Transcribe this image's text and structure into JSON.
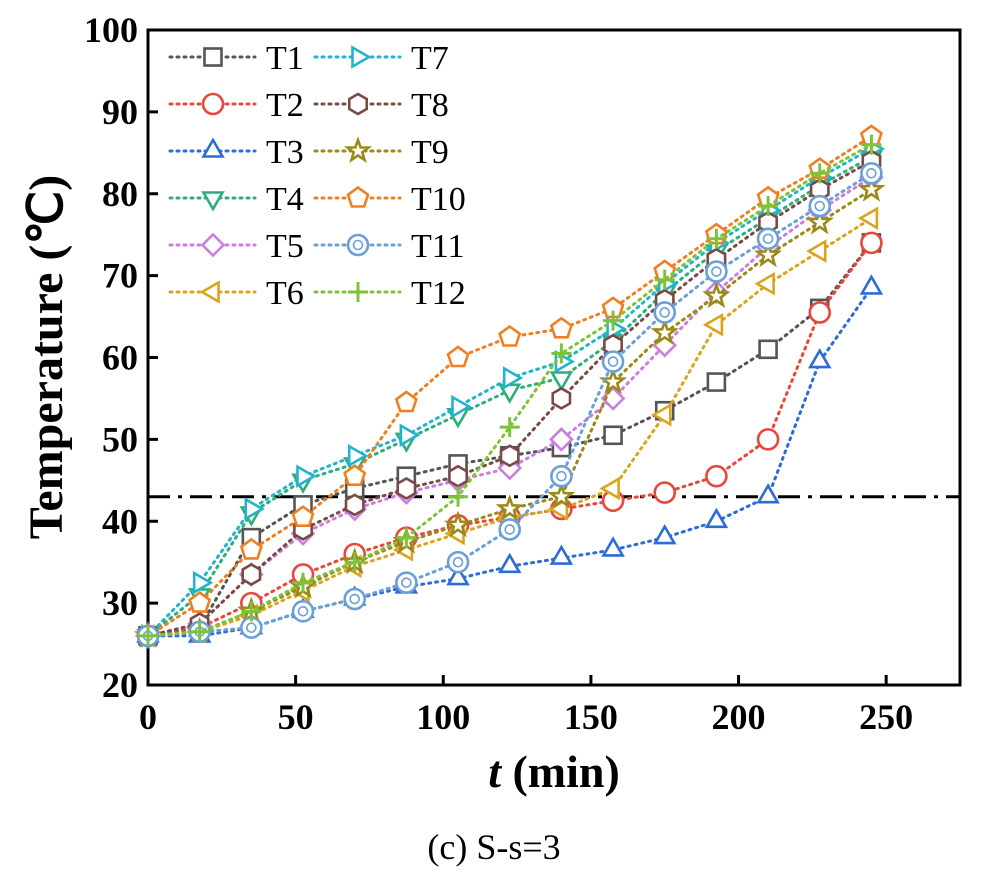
{
  "chart_data": {
    "type": "line",
    "xlabel_italic": "t",
    "xlabel_rest": " (min)",
    "ylabel": "Temperature (℃)",
    "xlim": [
      0,
      275
    ],
    "ylim": [
      20,
      100
    ],
    "xticks": [
      0,
      50,
      100,
      150,
      200,
      250
    ],
    "yticks": [
      20,
      30,
      40,
      50,
      60,
      70,
      80,
      90,
      100
    ],
    "reference_line": {
      "y": 43,
      "style": "dash-dot"
    },
    "legend_position": "top-left",
    "series": [
      {
        "name": "T1",
        "color": "#555555",
        "marker": "square",
        "x": [
          0,
          17.5,
          35,
          52.5,
          70,
          87.5,
          105,
          122.5,
          140,
          157.5,
          175,
          192.5,
          210,
          227.5,
          245
        ],
        "y": [
          26,
          27,
          38,
          42,
          44,
          45.5,
          47,
          48,
          49,
          50.5,
          53.5,
          57,
          61,
          66,
          74
        ]
      },
      {
        "name": "T2",
        "color": "#e8473c",
        "marker": "circle",
        "x": [
          0,
          17.5,
          35,
          52.5,
          70,
          87.5,
          105,
          122.5,
          140,
          157.5,
          175,
          192.5,
          210,
          227.5,
          245
        ],
        "y": [
          26,
          27,
          30,
          33.5,
          36,
          38,
          39.5,
          40.5,
          41.5,
          42.5,
          43.5,
          45.5,
          50,
          65.5,
          74
        ]
      },
      {
        "name": "T3",
        "color": "#2d6cd6",
        "marker": "triangle-up",
        "x": [
          0,
          17.5,
          35,
          52.5,
          70,
          87.5,
          105,
          122.5,
          140,
          157.5,
          175,
          192.5,
          210,
          227.5,
          245
        ],
        "y": [
          26,
          26,
          27,
          29,
          30.5,
          32,
          33,
          34.5,
          35.5,
          36.5,
          38,
          40,
          43,
          59.5,
          68.5
        ]
      },
      {
        "name": "T4",
        "color": "#2fae7a",
        "marker": "triangle-down",
        "x": [
          0,
          17.5,
          35,
          52.5,
          70,
          87.5,
          105,
          122.5,
          140,
          157.5,
          175,
          192.5,
          210,
          227.5,
          245
        ],
        "y": [
          26,
          31,
          41,
          45,
          47,
          50,
          53,
          56,
          57.5,
          62,
          68,
          73,
          77,
          81,
          84.5
        ]
      },
      {
        "name": "T5",
        "color": "#c97fe0",
        "marker": "diamond",
        "x": [
          0,
          17.5,
          35,
          52.5,
          70,
          87.5,
          105,
          122.5,
          140,
          157.5,
          175,
          192.5,
          210,
          227.5,
          245
        ],
        "y": [
          26,
          27.5,
          33.5,
          38.5,
          41.5,
          43.5,
          45,
          46.5,
          50,
          55,
          61.5,
          68,
          73.5,
          78,
          82
        ]
      },
      {
        "name": "T6",
        "color": "#d9a520",
        "marker": "triangle-left",
        "x": [
          0,
          17.5,
          35,
          52.5,
          70,
          87.5,
          105,
          122.5,
          140,
          157.5,
          175,
          192.5,
          210,
          227.5,
          245
        ],
        "y": [
          26,
          26.5,
          28.5,
          31.5,
          34.5,
          36.5,
          38.5,
          40.5,
          41.5,
          44,
          53,
          64,
          69,
          73,
          77
        ]
      },
      {
        "name": "T7",
        "color": "#22b4cc",
        "marker": "triangle-right",
        "x": [
          0,
          17.5,
          35,
          52.5,
          70,
          87.5,
          105,
          122.5,
          140,
          157.5,
          175,
          192.5,
          210,
          227.5,
          245
        ],
        "y": [
          26,
          32.5,
          41.5,
          45.5,
          48,
          50.5,
          54,
          57.5,
          59.5,
          63.5,
          69,
          74,
          78,
          82,
          85.5
        ]
      },
      {
        "name": "T8",
        "color": "#7a4a44",
        "marker": "hexagon",
        "x": [
          0,
          17.5,
          35,
          52.5,
          70,
          87.5,
          105,
          122.5,
          140,
          157.5,
          175,
          192.5,
          210,
          227.5,
          245
        ],
        "y": [
          26,
          27.5,
          33.5,
          39,
          42,
          44,
          45.5,
          48,
          55,
          61.5,
          67,
          72,
          76.5,
          80.5,
          84
        ]
      },
      {
        "name": "T9",
        "color": "#9b8a1a",
        "marker": "star",
        "x": [
          0,
          17.5,
          35,
          52.5,
          70,
          87.5,
          105,
          122.5,
          140,
          157.5,
          175,
          192.5,
          210,
          227.5,
          245
        ],
        "y": [
          26,
          26.5,
          29,
          32,
          35,
          37.5,
          39.5,
          41.5,
          43,
          57,
          63,
          67.5,
          72.5,
          76.5,
          80.5
        ]
      },
      {
        "name": "T10",
        "color": "#f07f22",
        "marker": "pentagon",
        "x": [
          0,
          17.5,
          35,
          52.5,
          70,
          87.5,
          105,
          122.5,
          140,
          157.5,
          175,
          192.5,
          210,
          227.5,
          245
        ],
        "y": [
          26,
          30,
          36.5,
          40.5,
          45.5,
          54.5,
          60,
          62.5,
          63.5,
          66,
          70.5,
          75,
          79.5,
          83,
          87
        ]
      },
      {
        "name": "T11",
        "color": "#6b9fd8",
        "marker": "circle-dot",
        "x": [
          0,
          17.5,
          35,
          52.5,
          70,
          87.5,
          105,
          122.5,
          140,
          157.5,
          175,
          192.5,
          210,
          227.5,
          245
        ],
        "y": [
          26,
          26.5,
          27,
          29,
          30.5,
          32.5,
          35,
          39,
          45.5,
          59.5,
          65.5,
          70.5,
          74.5,
          78.5,
          82.5
        ]
      },
      {
        "name": "T12",
        "color": "#7cc33a",
        "marker": "plus",
        "x": [
          0,
          17.5,
          35,
          52.5,
          70,
          87.5,
          105,
          122.5,
          140,
          157.5,
          175,
          192.5,
          210,
          227.5,
          245
        ],
        "y": [
          26,
          26.5,
          29,
          32.5,
          35,
          38,
          43,
          51.5,
          60.5,
          64.5,
          69.5,
          74.5,
          78.5,
          82.5,
          86
        ]
      }
    ]
  },
  "caption": "(c) S-s=3"
}
